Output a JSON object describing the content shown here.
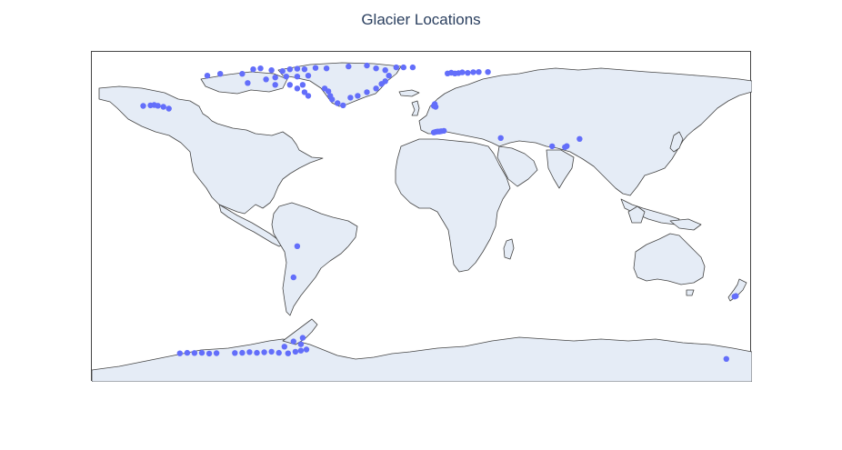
{
  "title": "Glacier Locations",
  "colors": {
    "marker": "#636efa",
    "land": "#e5ecf6",
    "coastline": "#444444",
    "title": "#2a3f5f"
  },
  "projection": "equirectangular",
  "extent": {
    "lon": [
      -180,
      180
    ],
    "lat": [
      -90,
      90
    ]
  },
  "points": [
    [
      -152,
      60.5
    ],
    [
      -148,
      60.8
    ],
    [
      -146,
      61
    ],
    [
      -144,
      60.6
    ],
    [
      -141,
      60
    ],
    [
      -138,
      59
    ],
    [
      -92,
      80.5
    ],
    [
      -88,
      81
    ],
    [
      -82,
      80
    ],
    [
      -76,
      79.5
    ],
    [
      -72,
      80.5
    ],
    [
      -68,
      80.8
    ],
    [
      -64,
      80.5
    ],
    [
      -58,
      81.2
    ],
    [
      -52,
      81
    ],
    [
      -80,
      76
    ],
    [
      -74,
      76.5
    ],
    [
      -68,
      76.5
    ],
    [
      -62,
      77
    ],
    [
      -85,
      75
    ],
    [
      -80,
      72
    ],
    [
      -72,
      72
    ],
    [
      -68,
      70
    ],
    [
      -64,
      68
    ],
    [
      -62,
      66
    ],
    [
      -65,
      72
    ],
    [
      -53,
      70
    ],
    [
      -51,
      68.5
    ],
    [
      -50,
      66
    ],
    [
      -49,
      64
    ],
    [
      -46,
      62
    ],
    [
      -43,
      60.8
    ],
    [
      -39,
      65
    ],
    [
      -35,
      66
    ],
    [
      -30,
      68
    ],
    [
      -25,
      70
    ],
    [
      -22,
      72.5
    ],
    [
      -20,
      74
    ],
    [
      -18,
      77
    ],
    [
      -20,
      80
    ],
    [
      -25,
      81
    ],
    [
      -30,
      82.5
    ],
    [
      -40,
      82
    ],
    [
      -14,
      81.5
    ],
    [
      -10,
      81.5
    ],
    [
      -5,
      81.5
    ],
    [
      -95,
      73
    ],
    [
      -98,
      78
    ],
    [
      -110,
      78
    ],
    [
      -117,
      77
    ],
    [
      14,
      78.2
    ],
    [
      16,
      78.6
    ],
    [
      18,
      78.2
    ],
    [
      20,
      78.4
    ],
    [
      22,
      78.8
    ],
    [
      25,
      78.5
    ],
    [
      28,
      78.9
    ],
    [
      31,
      79
    ],
    [
      36,
      79
    ],
    [
      7,
      61.5
    ],
    [
      6.5,
      60.5
    ],
    [
      7.5,
      60
    ],
    [
      6.5,
      46
    ],
    [
      7.5,
      46.3
    ],
    [
      8.5,
      46.5
    ],
    [
      9.5,
      46.5
    ],
    [
      10.5,
      46.7
    ],
    [
      12,
      46.9
    ],
    [
      43,
      43
    ],
    [
      71,
      38.5
    ],
    [
      78,
      38
    ],
    [
      79,
      38.6
    ],
    [
      86,
      42.5
    ],
    [
      -68,
      -16
    ],
    [
      -70,
      -33
    ],
    [
      170.5,
      -43.5
    ],
    [
      171.2,
      -43.2
    ],
    [
      -132,
      -74.5
    ],
    [
      -128,
      -74.2
    ],
    [
      -124,
      -74.3
    ],
    [
      -120,
      -74.2
    ],
    [
      -116,
      -74.6
    ],
    [
      -112,
      -74.4
    ],
    [
      -102,
      -74.3
    ],
    [
      -98,
      -74.2
    ],
    [
      -94,
      -73.8
    ],
    [
      -90,
      -74.2
    ],
    [
      -86,
      -73.9
    ],
    [
      -82,
      -73.6
    ],
    [
      -78,
      -74.2
    ],
    [
      -73,
      -74.5
    ],
    [
      -69,
      -73.6
    ],
    [
      -66,
      -73
    ],
    [
      -63,
      -72.4
    ],
    [
      -66,
      -69.5
    ],
    [
      -70,
      -68
    ],
    [
      -75,
      -70.8
    ],
    [
      -65,
      -66
    ],
    [
      166,
      -77.5
    ]
  ]
}
